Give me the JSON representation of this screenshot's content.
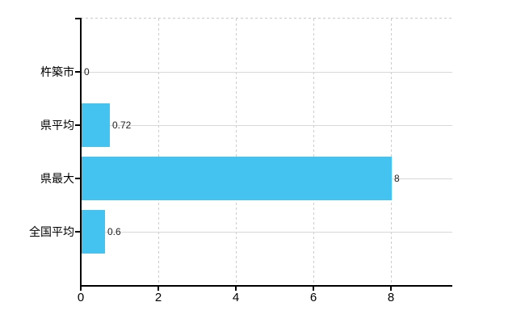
{
  "chart_data": {
    "type": "bar",
    "orientation": "horizontal",
    "title": "",
    "xlabel": "",
    "ylabel": "",
    "categories": [
      "杵築市",
      "県平均",
      "県最大",
      "全国平均"
    ],
    "values": [
      0,
      0.72,
      8,
      0.6
    ],
    "value_labels": [
      "0",
      "0.72",
      "8",
      "0.6"
    ],
    "x_ticks": [
      0,
      2,
      4,
      6,
      8
    ],
    "x_tick_labels": [
      "0",
      "2",
      "4",
      "6",
      "8"
    ],
    "xlim": [
      0,
      9.6
    ],
    "grid": true,
    "legend": false,
    "colors": {
      "bar": "#44c2f0",
      "axis": "#000000",
      "gridline_solid": "#d8d8d8",
      "gridline_dashed": "#cccccc",
      "text": "#000000",
      "value_text": "#222222",
      "background": "#ffffff"
    }
  }
}
